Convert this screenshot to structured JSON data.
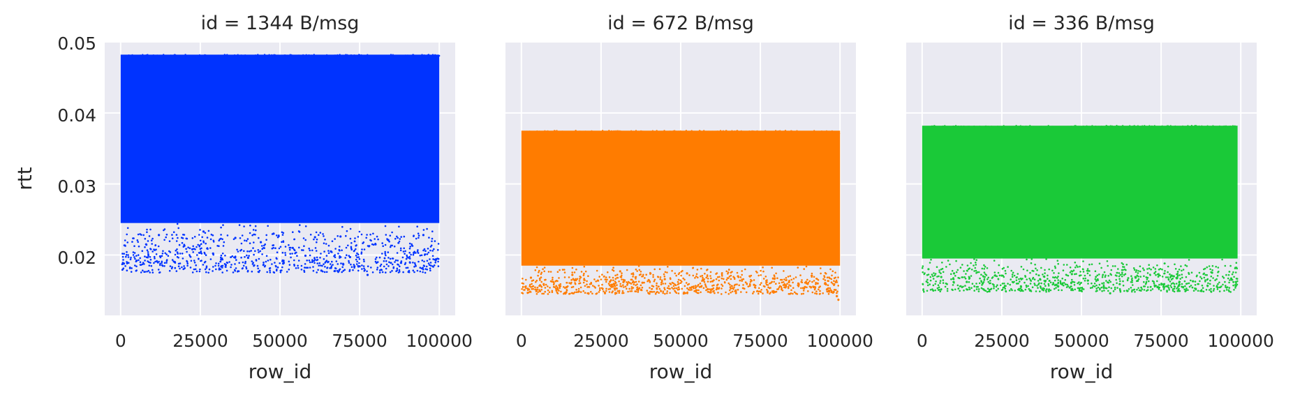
{
  "chart_data": [
    {
      "type": "scatter",
      "title": "id = 1344 B/msg",
      "xlabel": "row_id",
      "ylabel": "rtt",
      "xlim": [
        -5000,
        105000
      ],
      "ylim": [
        0.0115,
        0.05
      ],
      "xticks": [
        "0",
        "25000",
        "50000",
        "75000",
        "100000"
      ],
      "yticks": [
        "0.02",
        "0.03",
        "0.04",
        "0.05"
      ],
      "grid": true,
      "color": "#0033ff",
      "series": [
        {
          "x_range": [
            0,
            100000
          ],
          "dense_band": [
            0.0245,
            0.0482
          ],
          "sparse_band": [
            0.0175,
            0.0245
          ],
          "x": [
            1000,
            5000,
            8000,
            12000,
            17000,
            20000,
            22500,
            26000,
            29000,
            33000,
            36000,
            40000,
            44000,
            48000,
            51000,
            54000,
            58000,
            61000,
            63000,
            66000,
            69000,
            72000,
            75000,
            77500,
            80000,
            84000,
            88000,
            92000,
            95000,
            99000
          ],
          "y": [
            0.0188,
            0.0192,
            0.0215,
            0.0228,
            0.019,
            0.0213,
            0.0208,
            0.0233,
            0.0202,
            0.0186,
            0.0224,
            0.0196,
            0.0218,
            0.023,
            0.0188,
            0.021,
            0.0199,
            0.0225,
            0.0178,
            0.0205,
            0.0226,
            0.0197,
            0.0184,
            0.0172,
            0.0215,
            0.0221,
            0.0189,
            0.0203,
            0.0228,
            0.0194
          ]
        }
      ]
    },
    {
      "type": "scatter",
      "title": "id = 672 B/msg",
      "xlabel": "row_id",
      "ylabel": "",
      "xlim": [
        -5000,
        105000
      ],
      "ylim": [
        0.0115,
        0.05
      ],
      "xticks": [
        "0",
        "25000",
        "50000",
        "75000",
        "100000"
      ],
      "yticks": [
        "0.02",
        "0.03",
        "0.04",
        "0.05"
      ],
      "grid": true,
      "color": "#ff7c00",
      "series": [
        {
          "x_range": [
            0,
            100000
          ],
          "dense_band": [
            0.0185,
            0.0375
          ],
          "sparse_band": [
            0.0145,
            0.0185
          ],
          "x": [
            3000,
            7000,
            11000,
            16000,
            24000,
            31000,
            38000,
            45000,
            52000,
            60000,
            68000,
            73000,
            79000,
            84000,
            89000,
            93000,
            96000,
            98000,
            99000,
            99500
          ],
          "y": [
            0.0168,
            0.0159,
            0.015,
            0.0172,
            0.0164,
            0.0177,
            0.0161,
            0.0166,
            0.0174,
            0.0163,
            0.017,
            0.0158,
            0.0167,
            0.0162,
            0.0155,
            0.016,
            0.0152,
            0.0148,
            0.0142,
            0.0137
          ]
        }
      ]
    },
    {
      "type": "scatter",
      "title": "id = 336 B/msg",
      "xlabel": "row_id",
      "ylabel": "",
      "xlim": [
        -5000,
        105000
      ],
      "ylim": [
        0.0115,
        0.05
      ],
      "xticks": [
        "0",
        "25000",
        "50000",
        "75000",
        "100000"
      ],
      "yticks": [
        "0.02",
        "0.03",
        "0.04",
        "0.05"
      ],
      "grid": true,
      "color": "#1ac938",
      "series": [
        {
          "x_range": [
            0,
            99000
          ],
          "dense_band": [
            0.0195,
            0.0382
          ],
          "sparse_band": [
            0.0148,
            0.0195
          ],
          "x": [
            2000,
            6000,
            10000,
            14000,
            19000,
            25000,
            31000,
            37000,
            42000,
            47000,
            52000,
            57000,
            59000,
            62000,
            67000,
            73000,
            79000,
            85000,
            91000,
            97000
          ],
          "y": [
            0.018,
            0.0169,
            0.0174,
            0.0162,
            0.016,
            0.0171,
            0.0156,
            0.0166,
            0.0158,
            0.0173,
            0.0164,
            0.0155,
            0.0146,
            0.0159,
            0.0168,
            0.0157,
            0.017,
            0.0163,
            0.0175,
            0.0167
          ]
        }
      ]
    }
  ]
}
